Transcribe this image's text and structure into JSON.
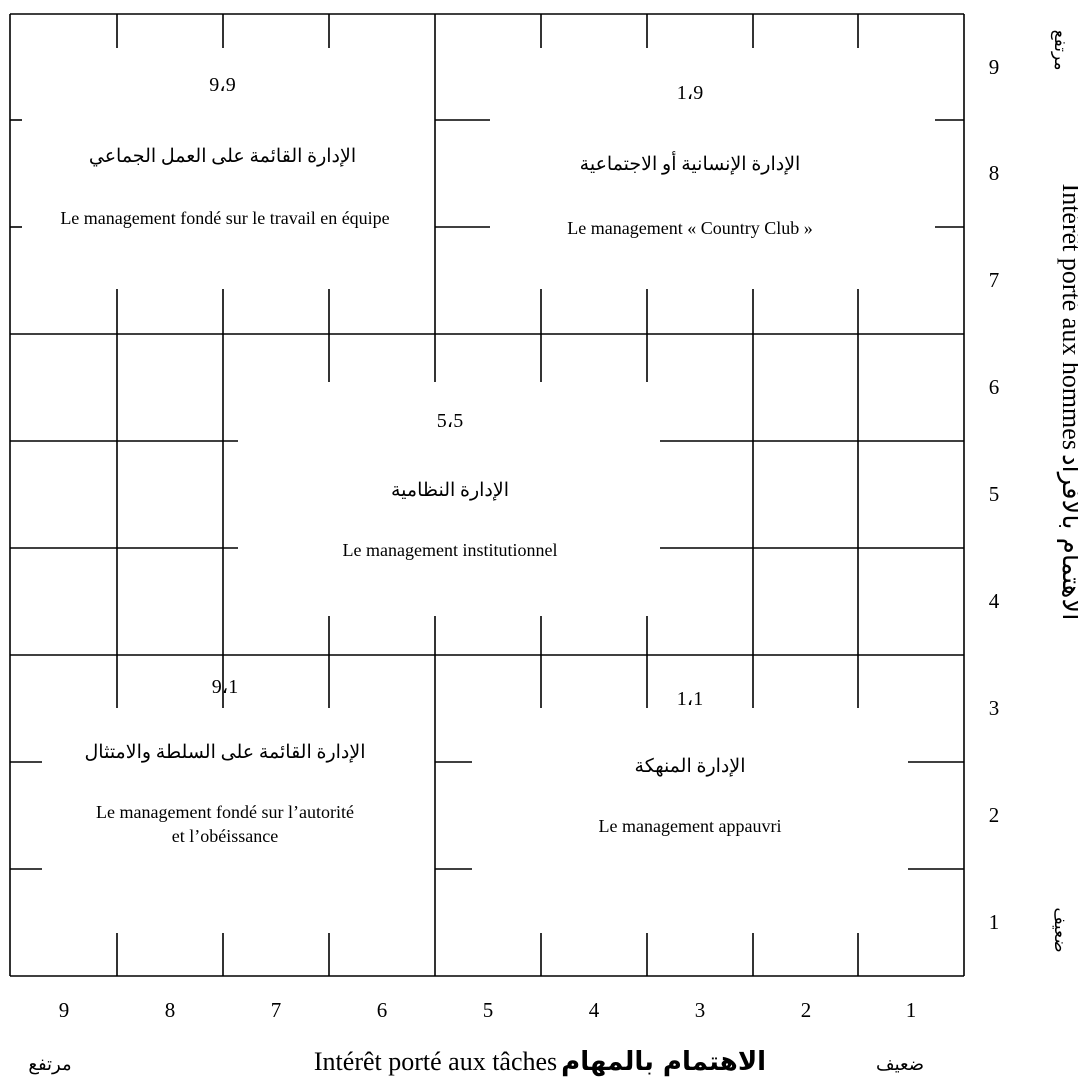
{
  "grid": {
    "x_ticks": [
      "9",
      "8",
      "7",
      "6",
      "5",
      "4",
      "3",
      "2",
      "1"
    ],
    "y_ticks": [
      "9",
      "8",
      "7",
      "6",
      "5",
      "4",
      "3",
      "2",
      "1"
    ]
  },
  "axes": {
    "x": {
      "label_fr": "Intérêt porté aux tâches",
      "label_ar": "الاهتمام بالمهام",
      "low": "ضعيف",
      "high": "مرتفع"
    },
    "y": {
      "label_fr": "Intérêt porté aux hommes",
      "label_ar": "الاهتمام بالأفراد",
      "low": "ضعيف",
      "high": "مرتفع"
    }
  },
  "styles": {
    "s99": {
      "coord": "9،9",
      "ar": "الإدارة القائمة على العمل الجماعي",
      "fr": "Le management fondé sur le travail en équipe"
    },
    "s19": {
      "coord": "1،9",
      "ar": "الإدارة الإنسانية أو الاجتماعية",
      "fr": "Le management « Country Club »"
    },
    "s55": {
      "coord": "5،5",
      "ar": "الإدارة النظامية",
      "fr": "Le management institutionnel"
    },
    "s91": {
      "coord": "9،1",
      "ar": "الإدارة القائمة على السلطة والامتثال",
      "fr": "Le management fondé sur l’autorité et l’obéissance"
    },
    "s11": {
      "coord": "1،1",
      "ar": "الإدارة المنهكة",
      "fr": "Le management appauvri"
    }
  }
}
